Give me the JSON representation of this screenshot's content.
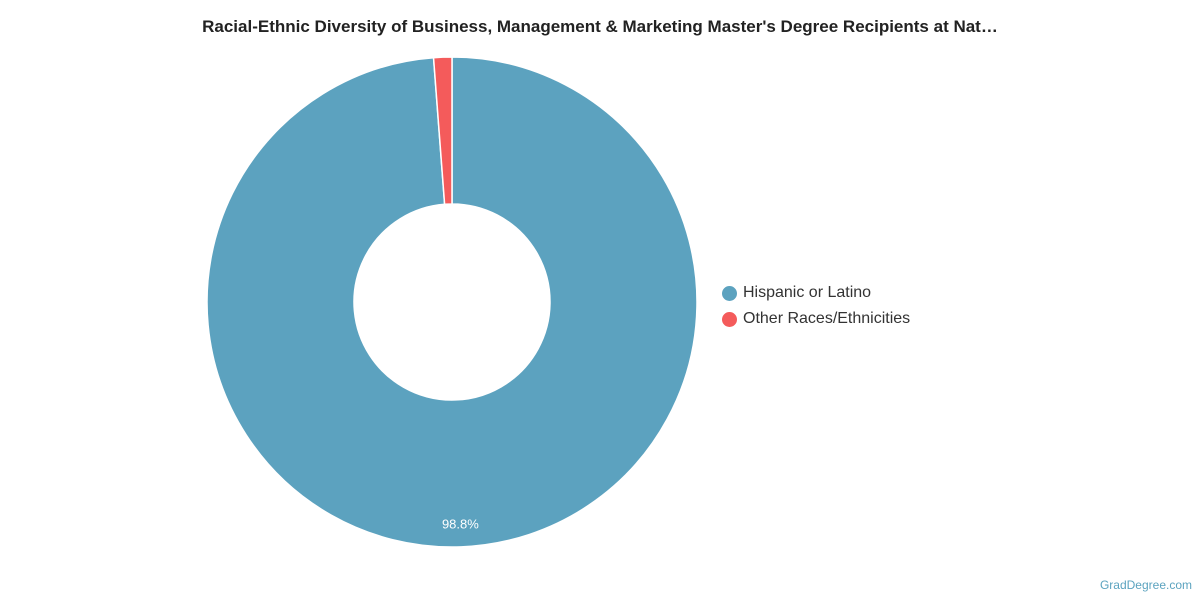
{
  "chart_data": {
    "type": "pie",
    "variant": "donut",
    "title": "Racial-Ethnic Diversity of Business, Management & Marketing Master's Degree Recipients at Nat…",
    "categories": [
      "Hispanic or Latino",
      "Other Races/Ethnicities"
    ],
    "values": [
      98.8,
      1.2
    ],
    "colors": [
      "#5ca2bf",
      "#f45b5b"
    ],
    "data_labels": [
      "98.8%",
      ""
    ],
    "legend_position": "right"
  },
  "watermark": "GradDegree.com"
}
